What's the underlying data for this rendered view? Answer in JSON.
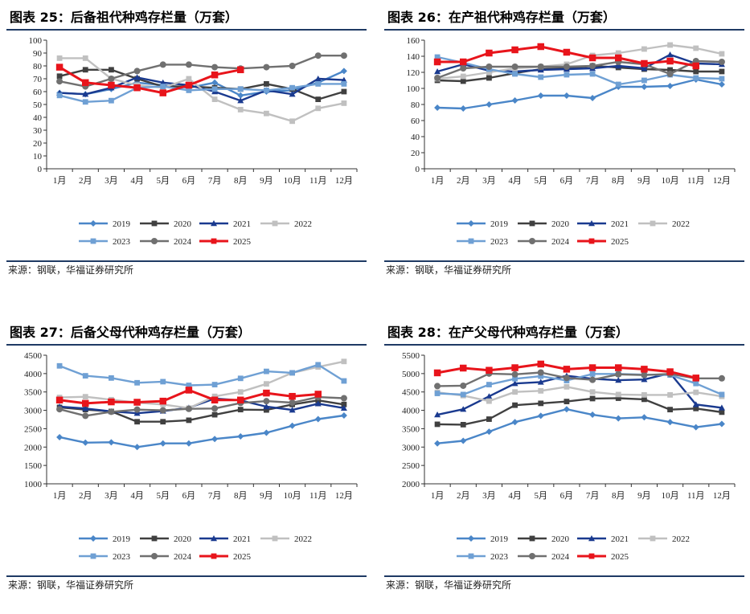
{
  "legend_label": "legend",
  "chart_data": [
    {
      "type": "line",
      "title": "图表 25：后备祖代种鸡存栏量（万套）",
      "source": "来源：钢联，华福证券研究所",
      "xlabel": "",
      "ylabel": "",
      "categories": [
        "1月",
        "2月",
        "3月",
        "4月",
        "5月",
        "6月",
        "7月",
        "8月",
        "9月",
        "10月",
        "11月",
        "12月"
      ],
      "ylim": [
        0,
        100
      ],
      "yticks": [
        0,
        10,
        20,
        30,
        40,
        50,
        60,
        70,
        80,
        90,
        100
      ],
      "series": [
        {
          "name": "2019",
          "color": "#4a86c8",
          "marker": "diamond",
          "values": [
            59,
            58,
            62,
            67,
            65,
            63,
            67,
            57,
            60,
            61,
            67,
            76
          ]
        },
        {
          "name": "2020",
          "color": "#404040",
          "marker": "square",
          "values": [
            72,
            77,
            77,
            70,
            64,
            64,
            63,
            62,
            66,
            62,
            54,
            60
          ]
        },
        {
          "name": "2021",
          "color": "#1a3a8f",
          "marker": "triangle",
          "values": [
            59,
            58,
            63,
            71,
            67,
            65,
            60,
            53,
            61,
            58,
            70,
            69
          ]
        },
        {
          "name": "2022",
          "color": "#c0c0c0",
          "marker": "square",
          "values": [
            86,
            86,
            70,
            65,
            63,
            70,
            54,
            46,
            43,
            37,
            47,
            51
          ]
        },
        {
          "name": "2023",
          "color": "#6fa0d4",
          "marker": "square",
          "values": [
            57,
            52,
            53,
            63,
            64,
            61,
            62,
            62,
            61,
            63,
            66,
            66
          ]
        },
        {
          "name": "2024",
          "color": "#707070",
          "marker": "circle",
          "values": [
            68,
            64,
            70,
            76,
            81,
            81,
            79,
            78,
            79,
            80,
            88,
            88
          ]
        },
        {
          "name": "2025",
          "color": "#e8141b",
          "marker": "square",
          "values": [
            79,
            67,
            65,
            63,
            59,
            65,
            73,
            77,
            null,
            null,
            null,
            null
          ]
        }
      ]
    },
    {
      "type": "line",
      "title": "图表 26：在产祖代种鸡存栏量（万套）",
      "source": "来源：钢联，华福证券研究所",
      "xlabel": "",
      "ylabel": "",
      "categories": [
        "1月",
        "2月",
        "3月",
        "4月",
        "5月",
        "6月",
        "7月",
        "8月",
        "9月",
        "10月",
        "11月",
        "12月"
      ],
      "ylim": [
        0,
        160
      ],
      "yticks": [
        0,
        20,
        40,
        60,
        80,
        100,
        120,
        140,
        160
      ],
      "series": [
        {
          "name": "2019",
          "color": "#4a86c8",
          "marker": "diamond",
          "values": [
            76,
            75,
            80,
            85,
            91,
            91,
            88,
            102,
            102,
            103,
            111,
            105
          ]
        },
        {
          "name": "2020",
          "color": "#404040",
          "marker": "square",
          "values": [
            110,
            109,
            113,
            119,
            124,
            125,
            128,
            126,
            124,
            123,
            121,
            121
          ]
        },
        {
          "name": "2021",
          "color": "#1a3a8f",
          "marker": "triangle",
          "values": [
            121,
            130,
            122,
            121,
            123,
            124,
            125,
            128,
            125,
            142,
            131,
            130
          ]
        },
        {
          "name": "2022",
          "color": "#c0c0c0",
          "marker": "square",
          "values": [
            112,
            115,
            120,
            125,
            127,
            130,
            141,
            144,
            149,
            154,
            150,
            143
          ]
        },
        {
          "name": "2023",
          "color": "#6fa0d4",
          "marker": "square",
          "values": [
            139,
            132,
            124,
            118,
            114,
            117,
            118,
            105,
            110,
            117,
            113,
            112
          ]
        },
        {
          "name": "2024",
          "color": "#707070",
          "marker": "circle",
          "values": [
            113,
            125,
            127,
            127,
            127,
            127,
            128,
            133,
            130,
            118,
            134,
            133
          ]
        },
        {
          "name": "2025",
          "color": "#e8141b",
          "marker": "square",
          "values": [
            133,
            133,
            144,
            148,
            152,
            145,
            138,
            138,
            131,
            134,
            128,
            null
          ]
        }
      ]
    },
    {
      "type": "line",
      "title": "图表 27：后备父母代种鸡存栏量（万套）",
      "source": "来源：钢联，华福证券研究所",
      "xlabel": "",
      "ylabel": "",
      "categories": [
        "1月",
        "2月",
        "3月",
        "4月",
        "5月",
        "6月",
        "7月",
        "8月",
        "9月",
        "10月",
        "11月",
        "12月"
      ],
      "ylim": [
        1000,
        4500
      ],
      "yticks": [
        1000,
        1500,
        2000,
        2500,
        3000,
        3500,
        4000,
        4500
      ],
      "series": [
        {
          "name": "2019",
          "color": "#4a86c8",
          "marker": "diamond",
          "values": [
            2270,
            2120,
            2130,
            2000,
            2100,
            2100,
            2220,
            2290,
            2390,
            2580,
            2760,
            2860
          ]
        },
        {
          "name": "2020",
          "color": "#404040",
          "marker": "square",
          "values": [
            3080,
            3020,
            2970,
            2690,
            2690,
            2730,
            2880,
            3020,
            3010,
            3160,
            3270,
            3160
          ]
        },
        {
          "name": "2021",
          "color": "#1a3a8f",
          "marker": "triangle",
          "values": [
            3100,
            3050,
            2970,
            2920,
            2980,
            3070,
            3320,
            3270,
            3100,
            3010,
            3180,
            3060
          ]
        },
        {
          "name": "2022",
          "color": "#c0c0c0",
          "marker": "square",
          "values": [
            3350,
            3370,
            3290,
            3210,
            3160,
            3060,
            3380,
            3500,
            3720,
            4020,
            4180,
            4330
          ]
        },
        {
          "name": "2023",
          "color": "#6fa0d4",
          "marker": "square",
          "values": [
            4210,
            3940,
            3880,
            3750,
            3780,
            3680,
            3700,
            3870,
            4060,
            4020,
            4240,
            3800
          ]
        },
        {
          "name": "2024",
          "color": "#707070",
          "marker": "circle",
          "values": [
            3030,
            2850,
            2960,
            3020,
            3000,
            3040,
            3050,
            3200,
            3250,
            3210,
            3360,
            3330
          ]
        },
        {
          "name": "2025",
          "color": "#e8141b",
          "marker": "square",
          "values": [
            3280,
            3190,
            3230,
            3220,
            3250,
            3550,
            3280,
            3280,
            3470,
            3380,
            3440,
            null
          ]
        }
      ]
    },
    {
      "type": "line",
      "title": "图表 28：在产父母代种鸡存栏量（万套）",
      "source": "来源：钢联，华福证券研究所",
      "xlabel": "",
      "ylabel": "",
      "categories": [
        "1月",
        "2月",
        "3月",
        "4月",
        "5月",
        "6月",
        "7月",
        "8月",
        "9月",
        "10月",
        "11月",
        "12月"
      ],
      "ylim": [
        2000,
        5500
      ],
      "yticks": [
        2000,
        2500,
        3000,
        3500,
        4000,
        4500,
        5000,
        5500
      ],
      "series": [
        {
          "name": "2019",
          "color": "#4a86c8",
          "marker": "diamond",
          "values": [
            3100,
            3170,
            3420,
            3680,
            3850,
            4030,
            3880,
            3780,
            3810,
            3680,
            3540,
            3630
          ]
        },
        {
          "name": "2020",
          "color": "#404040",
          "marker": "square",
          "values": [
            3620,
            3610,
            3760,
            4140,
            4190,
            4240,
            4320,
            4330,
            4300,
            4020,
            4050,
            3950
          ]
        },
        {
          "name": "2021",
          "color": "#1a3a8f",
          "marker": "triangle",
          "values": [
            3880,
            4030,
            4380,
            4730,
            4770,
            4940,
            4860,
            4820,
            4840,
            5010,
            4160,
            4070
          ]
        },
        {
          "name": "2022",
          "color": "#c0c0c0",
          "marker": "square",
          "values": [
            4490,
            4400,
            4250,
            4500,
            4530,
            4640,
            4500,
            4430,
            4420,
            4420,
            4490,
            4380
          ]
        },
        {
          "name": "2023",
          "color": "#6fa0d4",
          "marker": "square",
          "values": [
            4460,
            4430,
            4700,
            4860,
            4930,
            4810,
            4990,
            4990,
            4970,
            4960,
            4730,
            4430
          ]
        },
        {
          "name": "2024",
          "color": "#707070",
          "marker": "circle",
          "values": [
            4660,
            4670,
            5000,
            4980,
            5030,
            4880,
            4830,
            4980,
            4960,
            4990,
            4870,
            4870
          ]
        },
        {
          "name": "2025",
          "color": "#e8141b",
          "marker": "square",
          "values": [
            5020,
            5150,
            5090,
            5160,
            5260,
            5120,
            5160,
            5160,
            5120,
            5050,
            4880,
            null
          ]
        }
      ]
    }
  ]
}
